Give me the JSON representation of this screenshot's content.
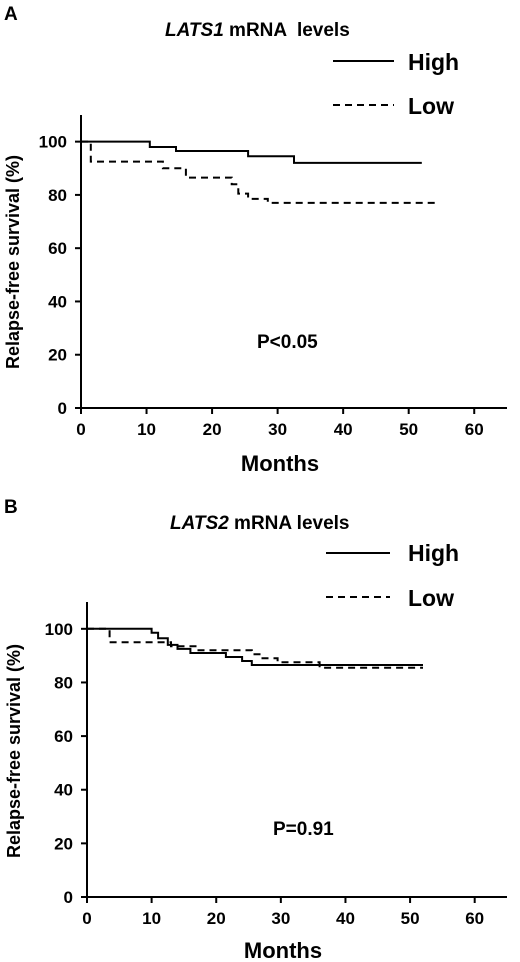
{
  "chart_data": [
    {
      "type": "line",
      "panel_label": "A",
      "title_gene": "LATS1",
      "title_rest": " mRNA  levels",
      "xlabel": "Months",
      "ylabel": "Relapse-free survival (%)",
      "xlim": [
        0,
        65
      ],
      "ylim": [
        0,
        110
      ],
      "xticks": [
        0,
        10,
        20,
        30,
        40,
        50,
        60
      ],
      "yticks": [
        0,
        20,
        40,
        60,
        80,
        100
      ],
      "annotation": "P<0.05",
      "legend_placement": "top-right",
      "series": [
        {
          "name": "High",
          "style": "solid",
          "x": [
            0,
            10.5,
            10.5,
            14.5,
            14.5,
            25.5,
            25.5,
            32.5,
            32.5,
            52
          ],
          "y": [
            100,
            100,
            98,
            98,
            96.5,
            96.5,
            94.5,
            94.5,
            92,
            92
          ]
        },
        {
          "name": "Low",
          "style": "dashed",
          "x": [
            0,
            1.5,
            1.5,
            12.5,
            12.5,
            16,
            16,
            23,
            23,
            24,
            24,
            25.5,
            25.5,
            28.5,
            28.5,
            54
          ],
          "y": [
            100,
            100,
            92.5,
            92.5,
            90,
            90,
            86.5,
            86.5,
            84,
            84,
            80.5,
            80.5,
            78.5,
            78.5,
            77,
            77
          ]
        }
      ]
    },
    {
      "type": "line",
      "panel_label": "B",
      "title_gene": "LATS2",
      "title_rest": " mRNA levels",
      "xlabel": "Months",
      "ylabel": "Relapse-free survival (%)",
      "xlim": [
        0,
        65
      ],
      "ylim": [
        0,
        110
      ],
      "xticks": [
        0,
        10,
        20,
        30,
        40,
        50,
        60
      ],
      "yticks": [
        0,
        20,
        40,
        60,
        80,
        100
      ],
      "annotation": "P=0.91",
      "legend_placement": "top-right",
      "series": [
        {
          "name": "High",
          "style": "solid",
          "x": [
            0,
            10,
            10,
            11,
            11,
            12.5,
            12.5,
            14,
            14,
            16,
            16,
            21.5,
            21.5,
            24,
            24,
            25.5,
            25.5,
            52
          ],
          "y": [
            100,
            100,
            98.5,
            98.5,
            96.5,
            96.5,
            94,
            94,
            92.5,
            92.5,
            91,
            91,
            89.5,
            89.5,
            88,
            88,
            86.5,
            86.5
          ]
        },
        {
          "name": "Low",
          "style": "dashed",
          "x": [
            0,
            3.5,
            3.5,
            13,
            13,
            17,
            17,
            25.5,
            25.5,
            27,
            27,
            29.5,
            29.5,
            36,
            36,
            52
          ],
          "y": [
            100,
            100,
            95,
            95,
            93.5,
            93.5,
            92,
            92,
            90.5,
            90.5,
            89,
            89,
            87.5,
            87.5,
            85.5,
            85.5
          ]
        }
      ]
    }
  ]
}
